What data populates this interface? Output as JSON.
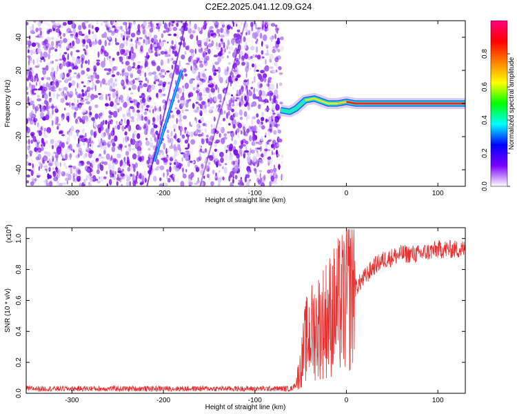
{
  "title": "C2E2.2025.041.12.09.G24",
  "spectrogram": {
    "type": "heatmap",
    "xlabel": "Height of straight line (km)",
    "ylabel": "Frequency (Hz)",
    "xlim": [
      -350,
      130
    ],
    "ylim": [
      -50,
      50
    ],
    "xticks": [
      -300,
      -200,
      -100,
      0,
      100
    ],
    "yticks": [
      -40,
      -20,
      0,
      20,
      40
    ],
    "noise_region_end_km": -70,
    "diagonal_track": [
      [
        -210,
        -35
      ],
      [
        -180,
        20
      ]
    ],
    "signal_line": [
      [
        -72,
        -4
      ],
      [
        -62,
        -5
      ],
      [
        -55,
        -3
      ],
      [
        -45,
        2
      ],
      [
        -35,
        3
      ],
      [
        -20,
        0
      ],
      [
        -10,
        0
      ],
      [
        0,
        1
      ],
      [
        10,
        0
      ],
      [
        50,
        0
      ],
      [
        100,
        0
      ],
      [
        130,
        0
      ]
    ]
  },
  "colorbar": {
    "label": "Normalized spectral amplitude",
    "ticks": [
      "0.0",
      "0.2",
      "0.4",
      "0.6",
      "0.8"
    ],
    "tick_values": [
      0.0,
      0.2,
      0.4,
      0.6,
      0.8
    ],
    "range": [
      0,
      1
    ],
    "colors": [
      "#ffffff",
      "#7a00ff",
      "#0000ff",
      "#00ffff",
      "#00ff00",
      "#ffff00",
      "#ff8000",
      "#ff0000",
      "#ff0080"
    ]
  },
  "snr": {
    "type": "line",
    "xlabel": "Height of straight line (km)",
    "ylabel": "SNR (10 * v/v)",
    "multiplier": "(x10",
    "multiplier_exp": "4",
    "multiplier_close": ")",
    "xlim": [
      -350,
      130
    ],
    "ylim": [
      0,
      1.07
    ],
    "xticks": [
      -300,
      -200,
      -100,
      0,
      100
    ],
    "yticks": [
      "0.0",
      "0.2",
      "0.4",
      "0.6",
      "0.8",
      "1.0"
    ],
    "ytick_values": [
      0.0,
      0.2,
      0.4,
      0.6,
      0.8,
      1.0
    ],
    "color": "#e83030",
    "envelope": [
      [
        -350,
        0.03
      ],
      [
        -100,
        0.03
      ],
      [
        -60,
        0.03
      ],
      [
        -55,
        0.06
      ],
      [
        -50,
        0.15
      ],
      [
        -45,
        0.3
      ],
      [
        -40,
        0.35
      ],
      [
        -30,
        0.4
      ],
      [
        -20,
        0.45
      ],
      [
        -10,
        0.5
      ],
      [
        0,
        0.55
      ],
      [
        10,
        0.68
      ],
      [
        20,
        0.75
      ],
      [
        30,
        0.82
      ],
      [
        40,
        0.86
      ],
      [
        50,
        0.88
      ],
      [
        60,
        0.9
      ],
      [
        80,
        0.9
      ],
      [
        100,
        0.93
      ],
      [
        130,
        0.93
      ]
    ]
  }
}
